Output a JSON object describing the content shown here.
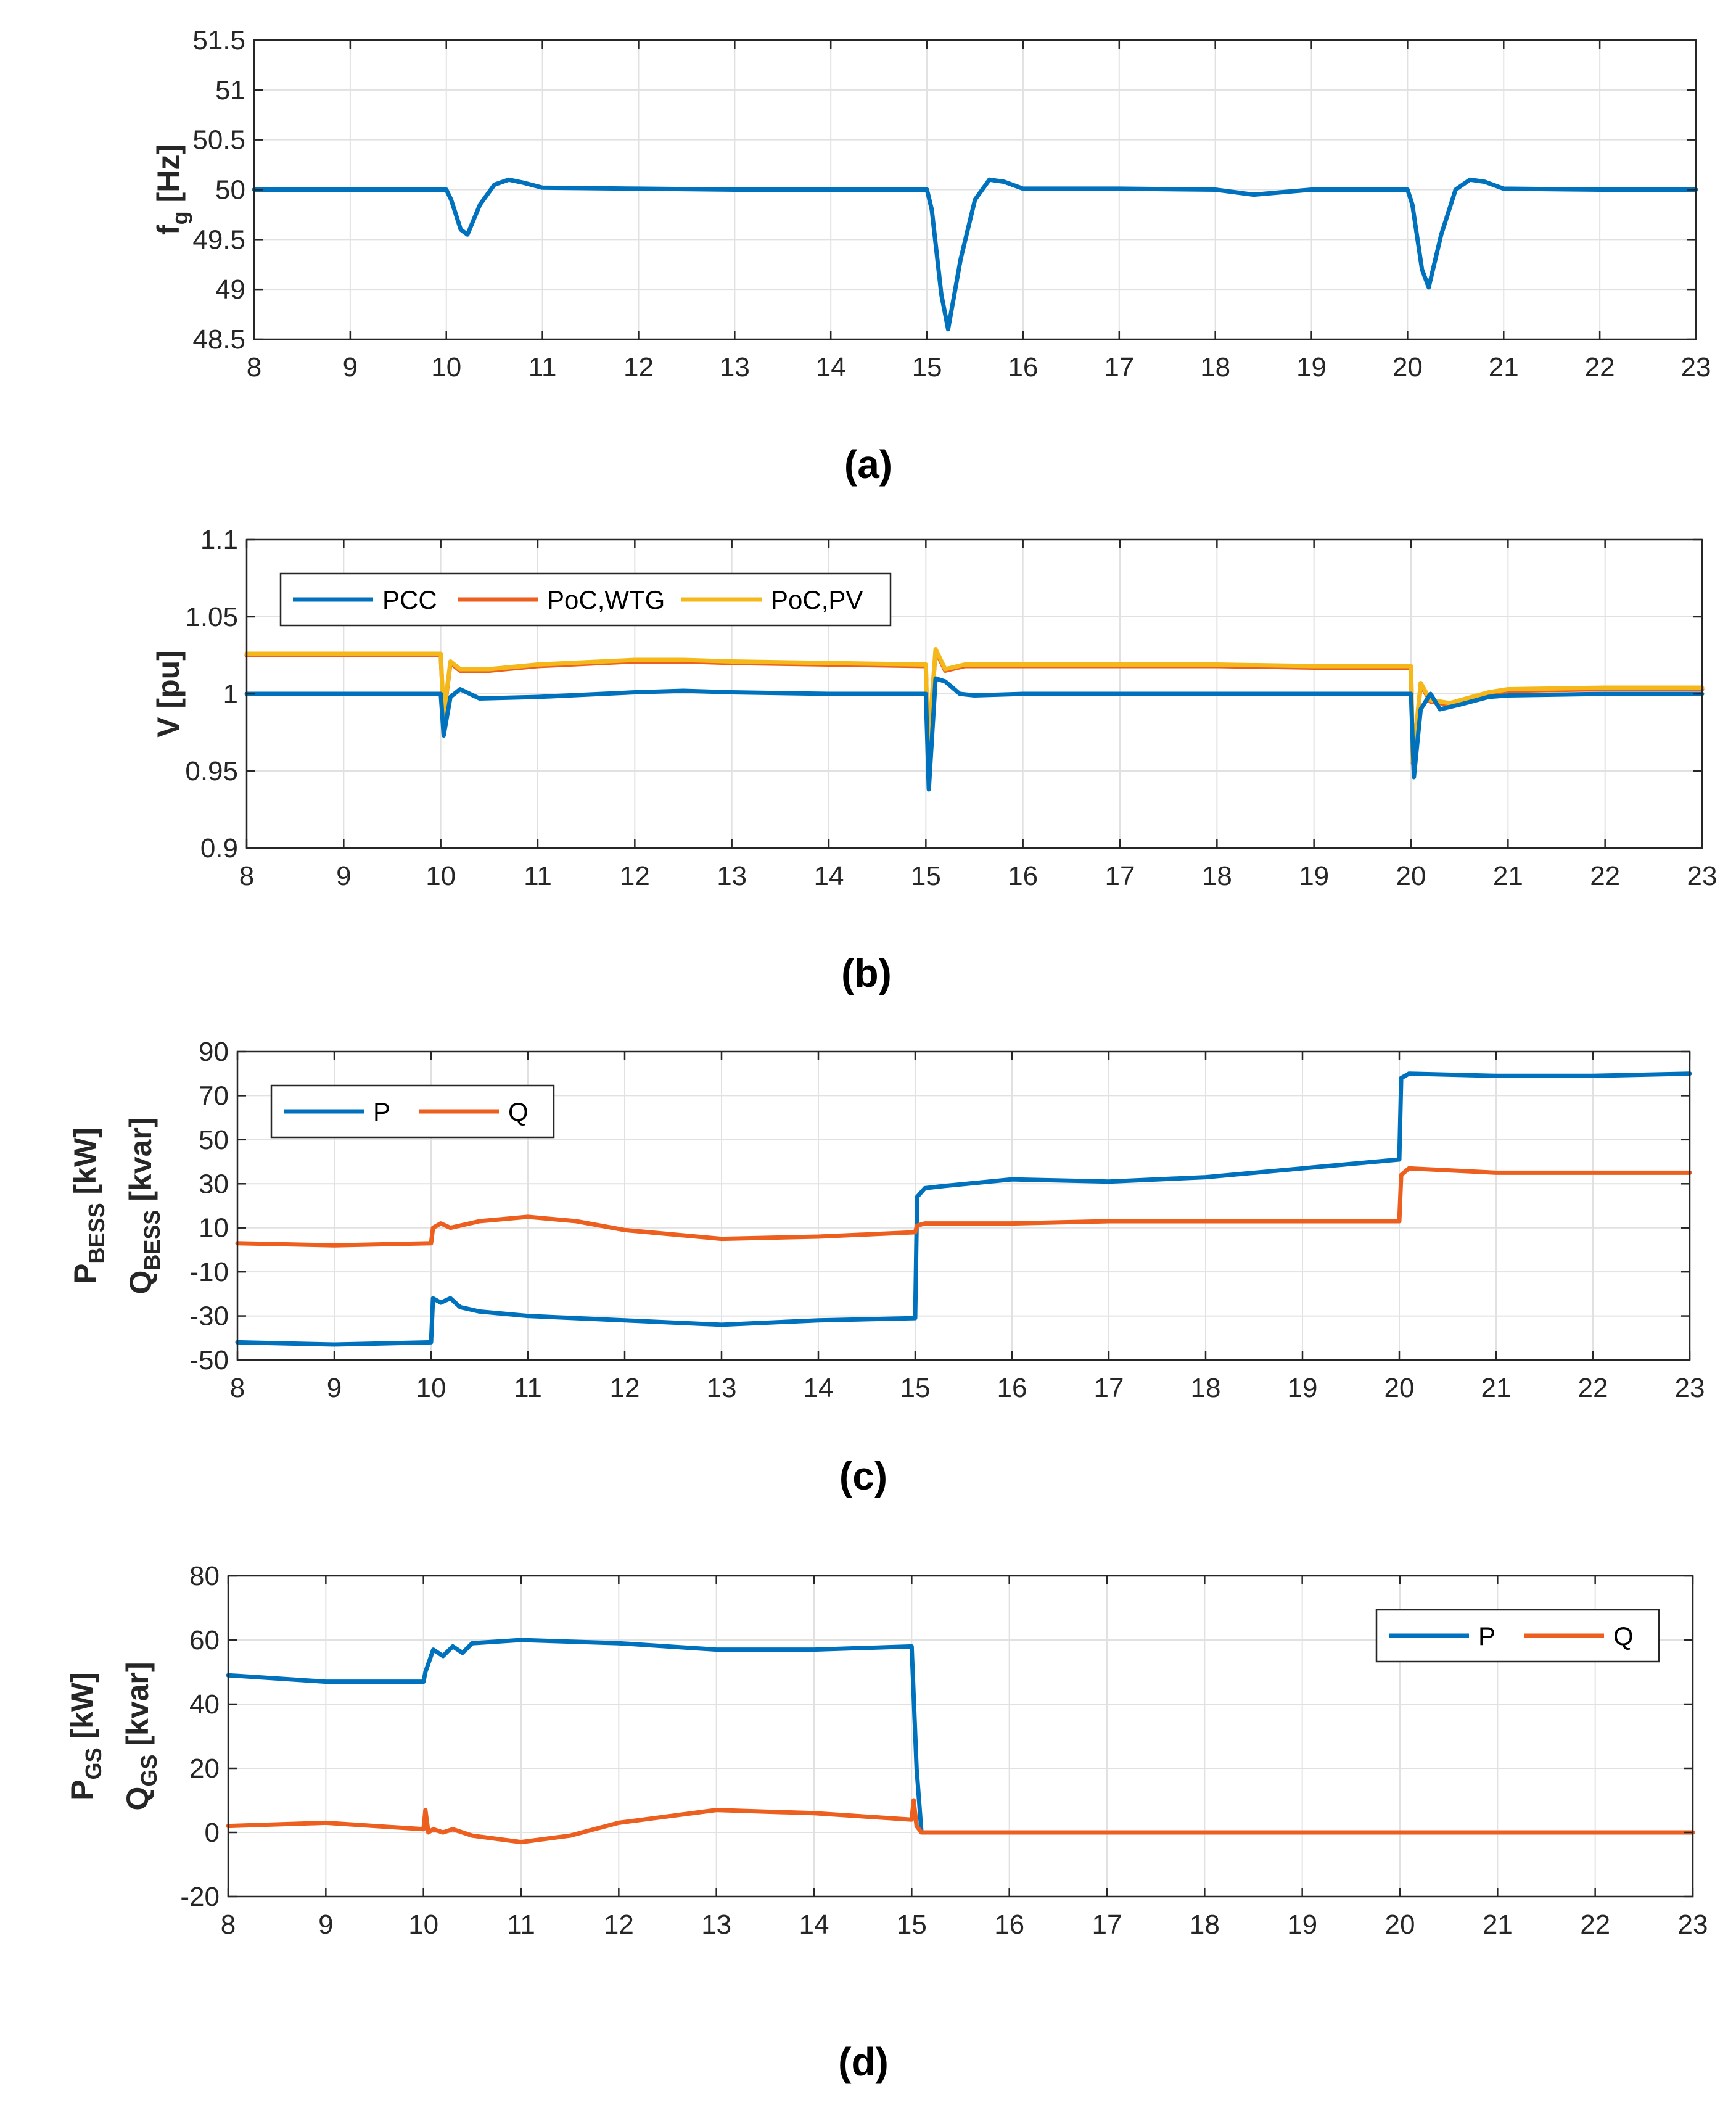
{
  "colors": {
    "blue": "#0072BD",
    "orange": "#ED5F1E",
    "yellow": "#F4B81A",
    "grid": "#e1e1e1",
    "axis": "#262626"
  },
  "chart_data": [
    {
      "id": "a",
      "type": "line",
      "caption": "(a)",
      "ylabel_main": "f",
      "ylabel_sub": "g",
      "ylabel_unit": " [Hz]",
      "xlim": [
        8,
        23
      ],
      "ylim": [
        48.5,
        51.5
      ],
      "xticks": [
        "8",
        "9",
        "10",
        "11",
        "12",
        "13",
        "14",
        "15",
        "16",
        "17",
        "18",
        "19",
        "20",
        "21",
        "22",
        "23"
      ],
      "yticks": [
        "48.5",
        "49",
        "49.5",
        "50",
        "50.5",
        "51",
        "51.5"
      ],
      "grid": true,
      "legend": null,
      "series": [
        {
          "color": "blue",
          "x": [
            8,
            9,
            10,
            10.05,
            10.15,
            10.22,
            10.35,
            10.5,
            10.65,
            10.8,
            11,
            12,
            13,
            14,
            15,
            15.05,
            15.15,
            15.22,
            15.35,
            15.5,
            15.65,
            15.8,
            16,
            17,
            18,
            18.4,
            19,
            20,
            20.05,
            20.15,
            20.22,
            20.35,
            20.5,
            20.65,
            20.8,
            21,
            22,
            23
          ],
          "y": [
            50,
            50,
            50,
            49.9,
            49.6,
            49.55,
            49.85,
            50.05,
            50.1,
            50.07,
            50.02,
            50.01,
            50,
            50,
            50,
            49.8,
            48.95,
            48.6,
            49.3,
            49.9,
            50.1,
            50.08,
            50.01,
            50.01,
            50,
            49.95,
            50,
            50,
            49.85,
            49.2,
            49.02,
            49.55,
            50,
            50.1,
            50.08,
            50.01,
            50,
            50
          ]
        }
      ]
    },
    {
      "id": "b",
      "type": "line",
      "caption": "(b)",
      "ylabel_main": "V [pu]",
      "ylabel_sub": "",
      "ylabel_unit": "",
      "xlim": [
        8,
        23
      ],
      "ylim": [
        0.9,
        1.1
      ],
      "xticks": [
        "8",
        "9",
        "10",
        "11",
        "12",
        "13",
        "14",
        "15",
        "16",
        "17",
        "18",
        "19",
        "20",
        "21",
        "22",
        "23"
      ],
      "yticks": [
        "0.9",
        "0.95",
        "1",
        "1.05",
        "1.1"
      ],
      "grid": true,
      "legend": {
        "position": "top-left",
        "entries": [
          {
            "label": "PCC",
            "color": "blue"
          },
          {
            "label": "PoC,WTG",
            "color": "orange"
          },
          {
            "label": "PoC,PV",
            "color": "yellow"
          }
        ]
      },
      "series": [
        {
          "name": "PoC,WTG",
          "color": "orange",
          "x": [
            8,
            10,
            10.03,
            10.1,
            10.2,
            10.5,
            11,
            12,
            12.5,
            13,
            14,
            15,
            15.02,
            15.1,
            15.2,
            15.4,
            16,
            17,
            18,
            19,
            20,
            20.02,
            20.1,
            20.2,
            20.4,
            20.8,
            21,
            22,
            23
          ],
          "y": [
            1.025,
            1.025,
            0.985,
            1.02,
            1.015,
            1.015,
            1.018,
            1.021,
            1.021,
            1.02,
            1.019,
            1.018,
            0.96,
            1.028,
            1.015,
            1.018,
            1.018,
            1.018,
            1.018,
            1.017,
            1.017,
            0.955,
            1.006,
            0.995,
            0.993,
            1,
            1.002,
            1.003,
            1.003
          ]
        },
        {
          "name": "PoC,PV",
          "color": "yellow",
          "x": [
            8,
            10,
            10.03,
            10.1,
            10.2,
            10.5,
            11,
            12,
            12.5,
            13,
            14,
            15,
            15.02,
            15.1,
            15.2,
            15.4,
            16,
            17,
            18,
            19,
            20,
            20.02,
            20.1,
            20.2,
            20.4,
            20.8,
            21,
            22,
            23
          ],
          "y": [
            1.026,
            1.026,
            0.986,
            1.021,
            1.016,
            1.016,
            1.019,
            1.022,
            1.022,
            1.021,
            1.02,
            1.019,
            0.962,
            1.029,
            1.016,
            1.019,
            1.019,
            1.019,
            1.019,
            1.018,
            1.018,
            0.956,
            1.007,
            0.996,
            0.994,
            1.001,
            1.003,
            1.004,
            1.004
          ]
        },
        {
          "name": "PCC",
          "color": "blue",
          "x": [
            8,
            10,
            10.03,
            10.1,
            10.2,
            10.4,
            11,
            12,
            12.5,
            13,
            14,
            15,
            15.03,
            15.1,
            15.2,
            15.35,
            15.5,
            16,
            17,
            18,
            19,
            20,
            20.03,
            20.1,
            20.2,
            20.3,
            20.5,
            20.8,
            21,
            22,
            23
          ],
          "y": [
            1,
            1,
            0.973,
            0.998,
            1.003,
            0.997,
            0.998,
            1.001,
            1.002,
            1.001,
            1,
            1,
            0.938,
            1.01,
            1.008,
            1,
            0.999,
            1,
            1,
            1,
            1,
            1,
            0.946,
            0.99,
            1,
            0.99,
            0.993,
            0.998,
            0.999,
            1,
            1
          ]
        }
      ]
    },
    {
      "id": "c",
      "type": "line",
      "caption": "(c)",
      "ylabel_main": "P",
      "ylabel_sub": "BESS",
      "ylabel_unit": " [kW]",
      "ylabel2_main": "Q",
      "ylabel2_sub": "BESS",
      "ylabel2_unit": " [kvar]",
      "xlim": [
        8,
        23
      ],
      "ylim": [
        -50,
        90
      ],
      "xticks": [
        "8",
        "9",
        "10",
        "11",
        "12",
        "13",
        "14",
        "15",
        "16",
        "17",
        "18",
        "19",
        "20",
        "21",
        "22",
        "23"
      ],
      "yticks": [
        "-50",
        "-30",
        "-10",
        "10",
        "30",
        "50",
        "70",
        "90"
      ],
      "grid": true,
      "legend": {
        "position": "top-left",
        "entries": [
          {
            "label": "P",
            "color": "blue"
          },
          {
            "label": "Q",
            "color": "orange"
          }
        ]
      },
      "series": [
        {
          "name": "P",
          "color": "blue",
          "x": [
            8,
            9,
            10,
            10.02,
            10.1,
            10.2,
            10.3,
            10.5,
            11,
            12,
            13,
            14,
            15,
            15.02,
            15.1,
            15.3,
            16,
            17,
            18,
            19,
            20,
            20.02,
            20.1,
            21,
            22,
            23
          ],
          "y": [
            -42,
            -43,
            -42,
            -22,
            -24,
            -22,
            -26,
            -28,
            -30,
            -32,
            -34,
            -32,
            -31,
            24,
            28,
            29,
            32,
            31,
            33,
            37,
            41,
            78,
            80,
            79,
            79,
            80
          ]
        },
        {
          "name": "Q",
          "color": "orange",
          "x": [
            8,
            9,
            10,
            10.02,
            10.1,
            10.2,
            10.5,
            11,
            11.5,
            12,
            13,
            14,
            15,
            15.02,
            15.1,
            16,
            17,
            18,
            19,
            20,
            20.02,
            20.1,
            21,
            22,
            23
          ],
          "y": [
            3,
            2,
            3,
            10,
            12,
            10,
            13,
            15,
            13,
            9,
            5,
            6,
            8,
            11,
            12,
            12,
            13,
            13,
            13,
            13,
            34,
            37,
            35,
            35,
            35
          ]
        }
      ]
    },
    {
      "id": "d",
      "type": "line",
      "caption": "(d)",
      "ylabel_main": "P",
      "ylabel_sub": "GS",
      "ylabel_unit": " [kW]",
      "ylabel2_main": "Q",
      "ylabel2_sub": "GS",
      "ylabel2_unit": " [kvar]",
      "xlim": [
        8,
        23
      ],
      "ylim": [
        -20,
        80
      ],
      "xticks": [
        "8",
        "9",
        "10",
        "11",
        "12",
        "13",
        "14",
        "15",
        "16",
        "17",
        "18",
        "19",
        "20",
        "21",
        "22",
        "23"
      ],
      "yticks": [
        "-20",
        "0",
        "20",
        "40",
        "60",
        "80"
      ],
      "grid": true,
      "legend": {
        "position": "top-right",
        "entries": [
          {
            "label": "P",
            "color": "blue"
          },
          {
            "label": "Q",
            "color": "orange"
          }
        ]
      },
      "series": [
        {
          "name": "P",
          "color": "blue",
          "x": [
            8,
            9,
            10,
            10.02,
            10.1,
            10.2,
            10.3,
            10.4,
            10.5,
            11,
            12,
            13,
            14,
            15,
            15.05,
            15.1,
            16,
            17,
            18,
            19,
            20,
            21,
            22,
            23
          ],
          "y": [
            49,
            47,
            47,
            50,
            57,
            55,
            58,
            56,
            59,
            60,
            59,
            57,
            57,
            58,
            20,
            0,
            0,
            0,
            0,
            0,
            0,
            0,
            0,
            0
          ]
        },
        {
          "name": "Q",
          "color": "orange",
          "x": [
            8,
            9,
            10,
            10.02,
            10.05,
            10.1,
            10.2,
            10.3,
            10.5,
            11,
            11.5,
            12,
            13,
            14,
            15,
            15.02,
            15.05,
            15.1,
            16,
            17,
            18,
            19,
            20,
            21,
            22,
            23
          ],
          "y": [
            2,
            3,
            1,
            7,
            0,
            1,
            0,
            1,
            -1,
            -3,
            -1,
            3,
            7,
            6,
            4,
            10,
            2,
            0,
            0,
            0,
            0,
            0,
            0,
            0,
            0,
            0
          ]
        }
      ]
    }
  ]
}
